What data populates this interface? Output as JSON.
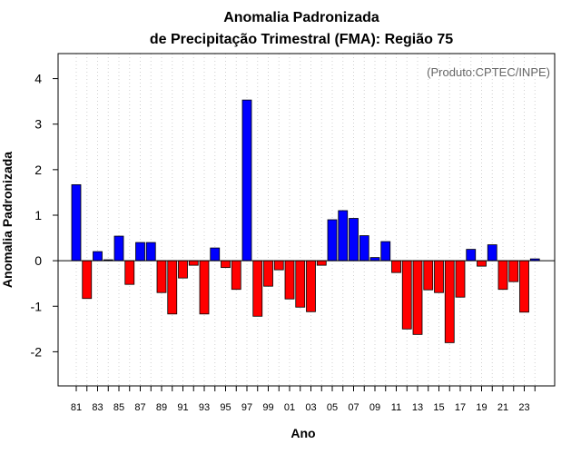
{
  "chart_data": {
    "type": "bar",
    "title": "Anomalia Padronizada",
    "subtitle": "de Precipitação Trimestral (FMA): Região 75",
    "xlabel": "Ano",
    "ylabel": "Anomalia Padronizada",
    "annotation": "(Produto:CPTEC/INPE)",
    "ylim": [
      -2.75,
      4.55
    ],
    "yticks": [
      -2,
      -1,
      0,
      1,
      2,
      3,
      4
    ],
    "grid": true,
    "positive_color": "#0000ff",
    "negative_color": "#ff0000",
    "categories": [
      "81",
      "82",
      "83",
      "84",
      "85",
      "86",
      "87",
      "88",
      "89",
      "90",
      "91",
      "92",
      "93",
      "94",
      "95",
      "96",
      "97",
      "98",
      "99",
      "00",
      "01",
      "02",
      "03",
      "04",
      "05",
      "06",
      "07",
      "08",
      "09",
      "10",
      "11",
      "12",
      "13",
      "14",
      "15",
      "16",
      "17",
      "18",
      "19",
      "20",
      "21",
      "22",
      "23",
      "24"
    ],
    "tick_labels": [
      "81",
      "83",
      "85",
      "87",
      "89",
      "91",
      "93",
      "95",
      "97",
      "99",
      "01",
      "03",
      "05",
      "07",
      "09",
      "11",
      "13",
      "15",
      "17",
      "19",
      "21",
      "23"
    ],
    "values": [
      1.67,
      -0.83,
      0.2,
      0.02,
      0.54,
      -0.52,
      0.4,
      0.4,
      -0.7,
      -1.17,
      -0.38,
      -0.1,
      -1.17,
      0.28,
      -0.15,
      -0.63,
      3.53,
      -1.22,
      -0.56,
      -0.2,
      -0.84,
      -1.02,
      -1.12,
      -0.1,
      0.9,
      1.1,
      0.93,
      0.55,
      0.07,
      0.42,
      -0.26,
      -1.5,
      -1.62,
      -0.64,
      -0.7,
      -1.8,
      -0.8,
      0.25,
      -0.12,
      0.35,
      -0.63,
      -0.46,
      -1.13,
      0.04
    ]
  }
}
